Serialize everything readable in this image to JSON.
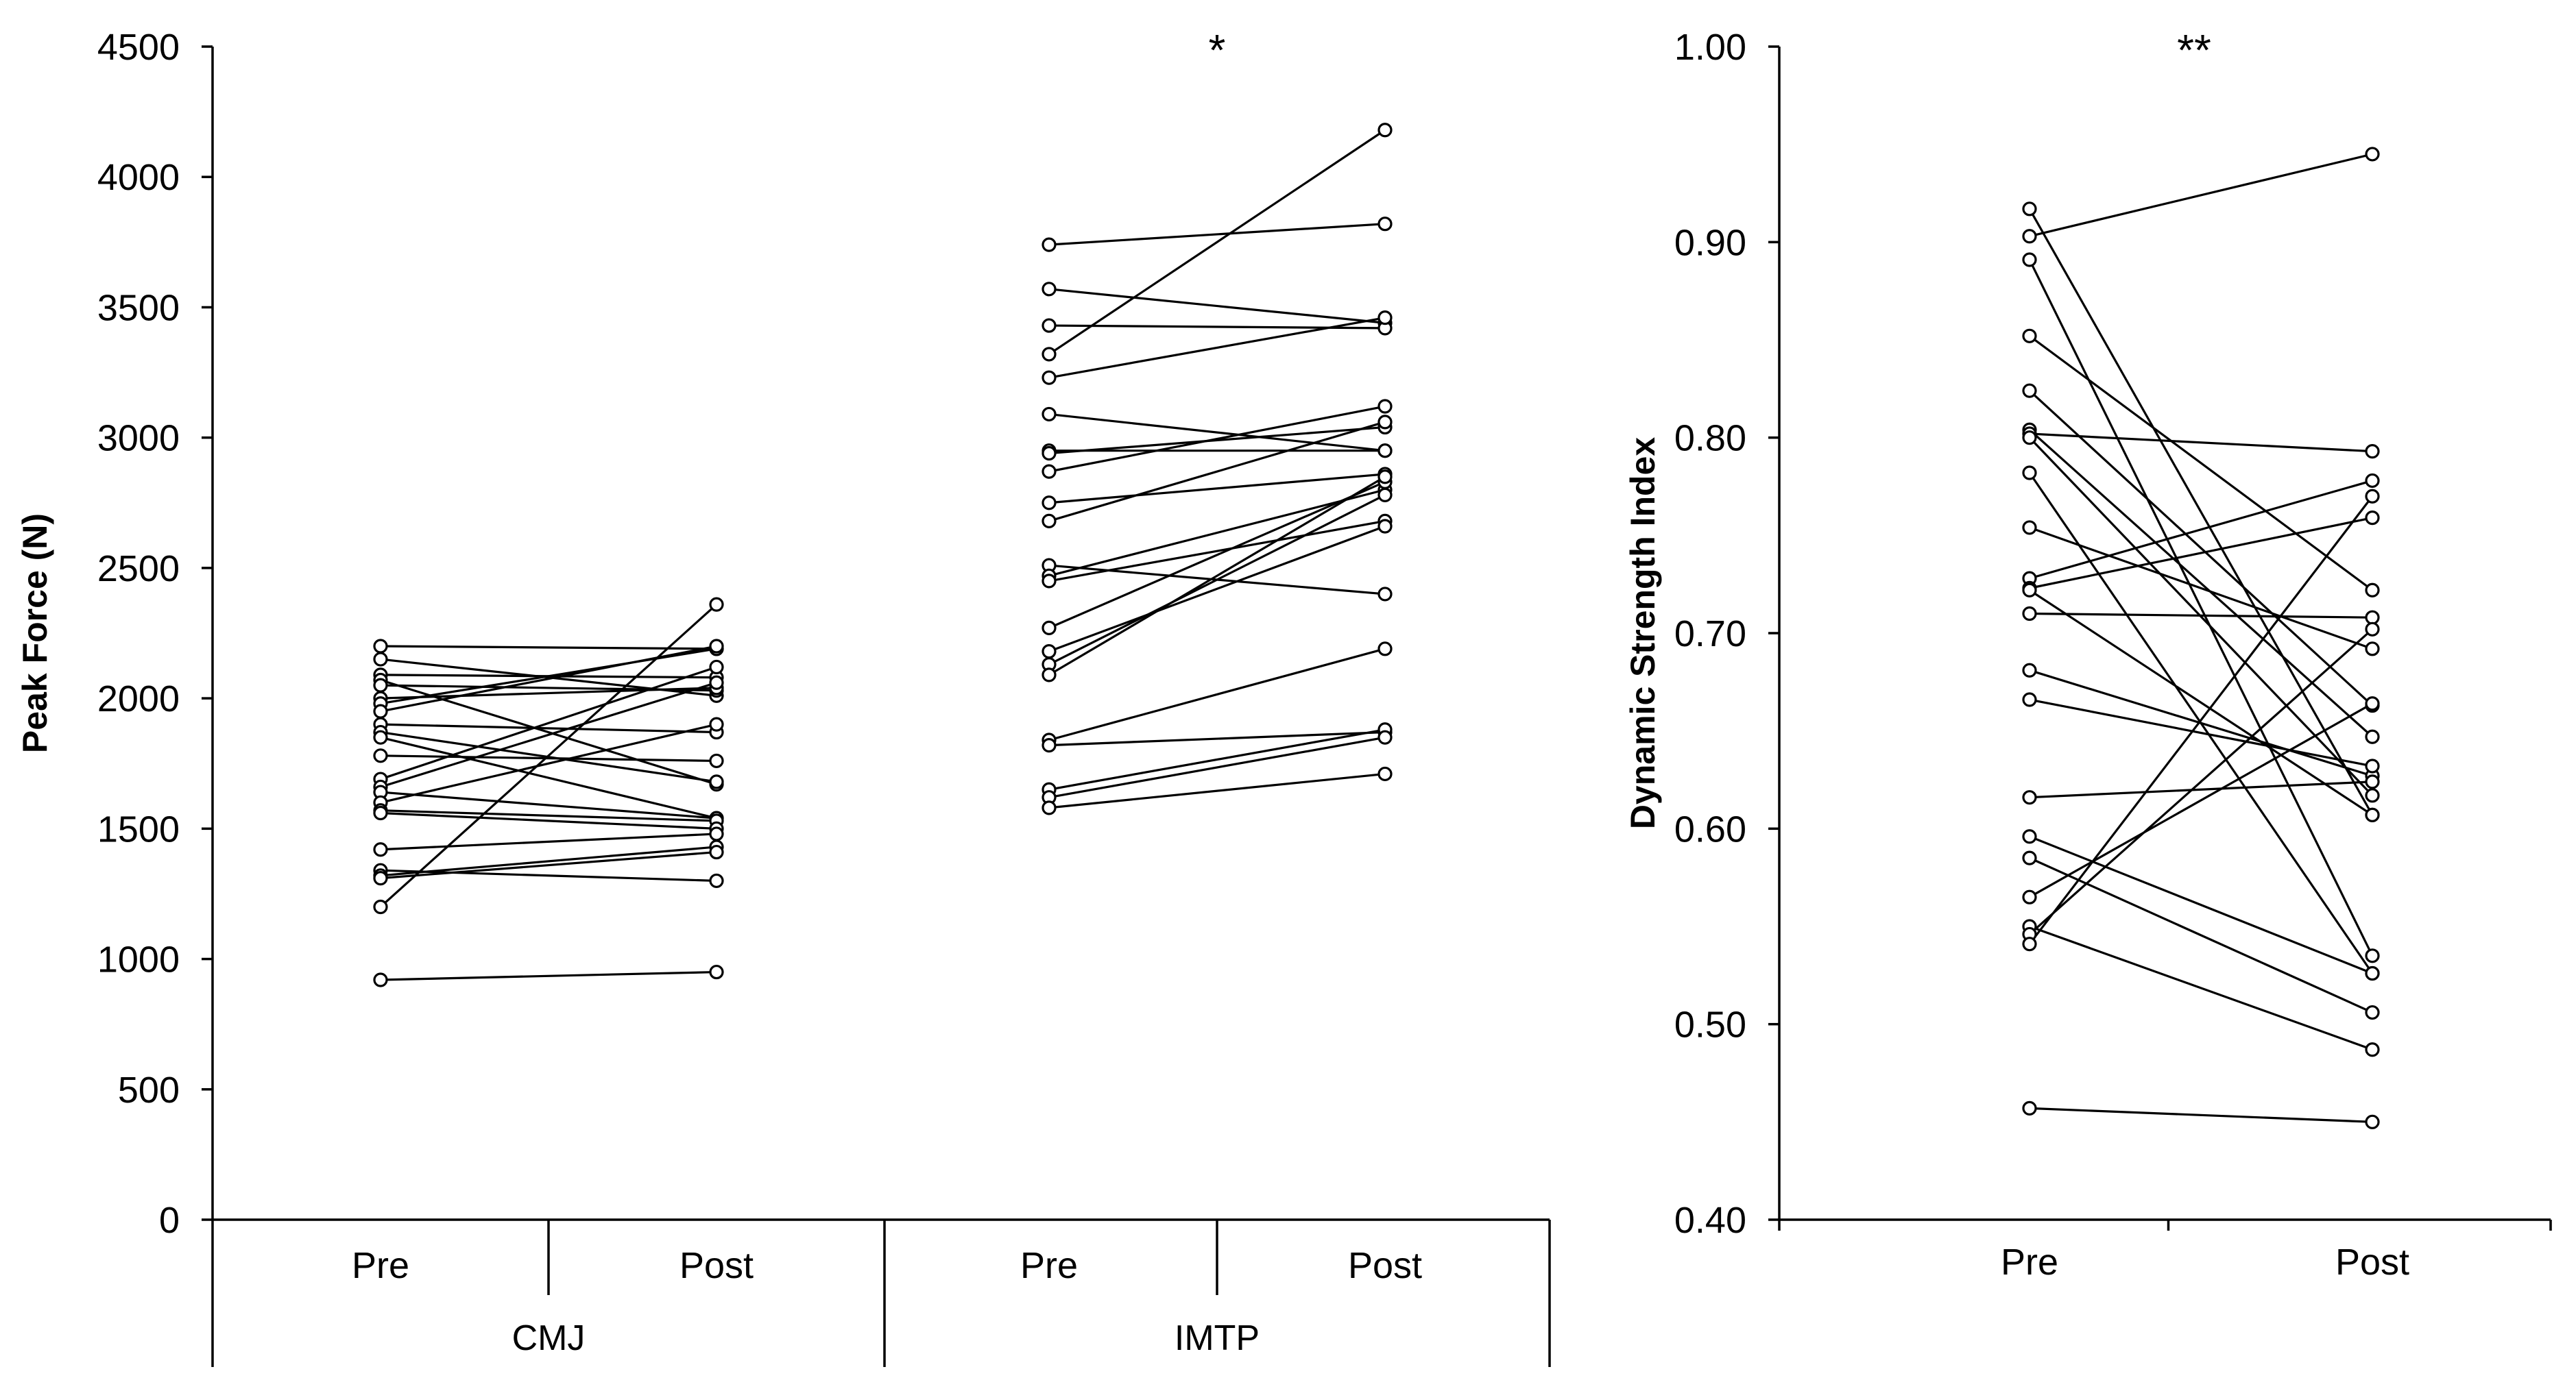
{
  "chart_data": [
    {
      "type": "line",
      "subtype": "paired-slope",
      "ylabel": "Peak Force (N)",
      "ylim": [
        0,
        4500
      ],
      "yticks": [
        0,
        500,
        1000,
        1500,
        2000,
        2500,
        3000,
        3500,
        4000,
        4500
      ],
      "categories": [
        "Pre",
        "Post",
        "Pre",
        "Post"
      ],
      "groups": [
        {
          "name": "CMJ",
          "significance": "",
          "pre": [
            2200,
            2150,
            2090,
            2070,
            2050,
            2000,
            1980,
            1950,
            1900,
            1870,
            1850,
            1780,
            1690,
            1660,
            1640,
            1600,
            1570,
            1560,
            1420,
            1340,
            1320,
            1310,
            1200,
            920
          ],
          "post": [
            2190,
            2010,
            2080,
            1670,
            2030,
            2040,
            2190,
            2200,
            1870,
            1680,
            1540,
            1760,
            2120,
            2060,
            1540,
            1900,
            1530,
            1500,
            1480,
            1300,
            1430,
            1410,
            2360,
            950
          ]
        },
        {
          "name": "IMTP",
          "significance": "*",
          "pre": [
            3740,
            3570,
            3430,
            3320,
            3230,
            3090,
            2950,
            2940,
            2870,
            2750,
            2680,
            2510,
            2470,
            2450,
            2270,
            2180,
            2130,
            2090,
            1840,
            1820,
            1650,
            1620,
            1580
          ],
          "post": [
            3820,
            3440,
            3420,
            4180,
            3460,
            2950,
            2950,
            3040,
            3120,
            2860,
            3060,
            2400,
            2800,
            2680,
            2830,
            2660,
            2780,
            2850,
            2190,
            1870,
            1880,
            1850,
            1710
          ]
        }
      ]
    },
    {
      "type": "line",
      "subtype": "paired-slope",
      "ylabel": "Dynamic Strength Index",
      "ylim": [
        0.4,
        1.0
      ],
      "yticks": [
        "0.40",
        "0.50",
        "0.60",
        "0.70",
        "0.80",
        "0.90",
        "1.00"
      ],
      "categories": [
        "Pre",
        "Post"
      ],
      "significance": "**",
      "pre": [
        0.917,
        0.903,
        0.891,
        0.852,
        0.824,
        0.804,
        0.802,
        0.8,
        0.782,
        0.754,
        0.728,
        0.723,
        0.722,
        0.71,
        0.681,
        0.666,
        0.616,
        0.596,
        0.585,
        0.565,
        0.55,
        0.546,
        0.541,
        0.457
      ],
      "post": [
        0.607,
        0.945,
        0.535,
        0.722,
        0.663,
        0.647,
        0.793,
        0.617,
        0.526,
        0.692,
        0.778,
        0.759,
        0.607,
        0.708,
        0.627,
        0.632,
        0.624,
        0.526,
        0.506,
        0.664,
        0.487,
        0.702,
        0.77,
        0.45
      ]
    }
  ]
}
